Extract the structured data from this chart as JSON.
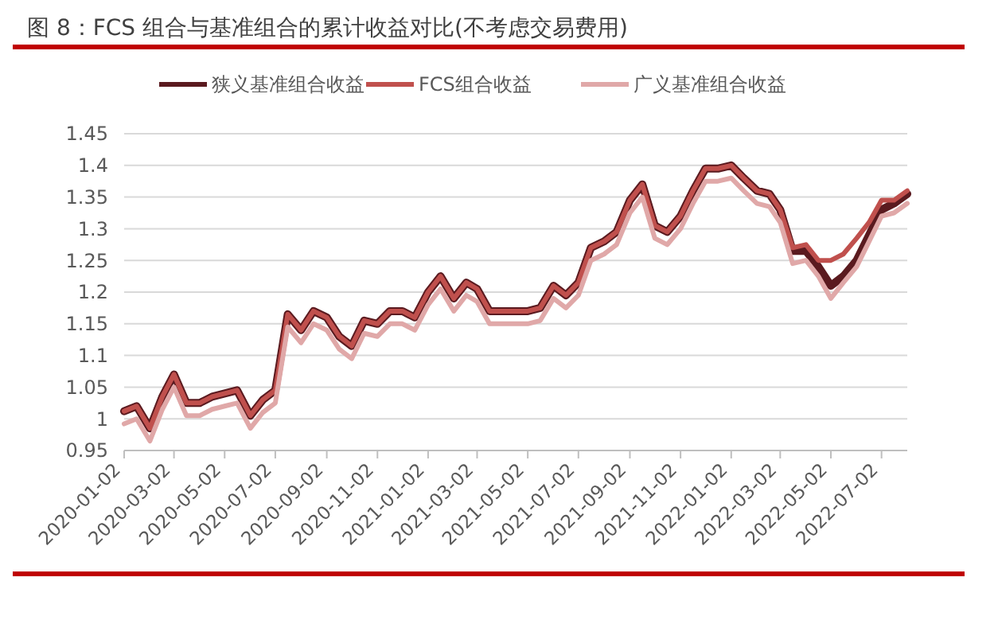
{
  "chart_data": {
    "type": "line",
    "title": "图 8：FCS 组合与基准组合的累计收益对比(不考虑交易费用)",
    "x": [
      "2020-01-02",
      "2020-01-17",
      "2020-02-02",
      "2020-02-17",
      "2020-03-02",
      "2020-03-17",
      "2020-04-02",
      "2020-04-17",
      "2020-05-02",
      "2020-05-17",
      "2020-06-02",
      "2020-06-17",
      "2020-07-02",
      "2020-07-17",
      "2020-08-02",
      "2020-08-17",
      "2020-09-02",
      "2020-09-17",
      "2020-10-02",
      "2020-10-17",
      "2020-11-02",
      "2020-11-17",
      "2020-12-02",
      "2020-12-17",
      "2021-01-02",
      "2021-01-17",
      "2021-02-02",
      "2021-02-17",
      "2021-03-02",
      "2021-03-17",
      "2021-04-02",
      "2021-04-17",
      "2021-05-02",
      "2021-05-17",
      "2021-06-02",
      "2021-06-17",
      "2021-07-02",
      "2021-07-17",
      "2021-08-02",
      "2021-08-17",
      "2021-09-02",
      "2021-09-17",
      "2021-10-02",
      "2021-10-17",
      "2021-11-02",
      "2021-11-17",
      "2021-12-02",
      "2021-12-17",
      "2022-01-02",
      "2022-01-17",
      "2022-02-02",
      "2022-02-17",
      "2022-03-02",
      "2022-03-17",
      "2022-04-02",
      "2022-04-17",
      "2022-05-02",
      "2022-05-17",
      "2022-06-02",
      "2022-06-17",
      "2022-07-02",
      "2022-07-17",
      "2022-08-02"
    ],
    "xlim": [
      "2020-01-02",
      "2022-08-02"
    ],
    "xticks": [
      "2020-01-02",
      "2020-03-02",
      "2020-05-02",
      "2020-07-02",
      "2020-09-02",
      "2020-11-02",
      "2021-01-02",
      "2021-03-02",
      "2021-05-02",
      "2021-07-02",
      "2021-09-02",
      "2021-11-02",
      "2022-01-02",
      "2022-03-02",
      "2022-05-02",
      "2022-07-02"
    ],
    "series": [
      {
        "name": "狭义基准组合收益",
        "color": "#5a1a1f",
        "values": [
          1.012,
          1.02,
          0.985,
          1.035,
          1.07,
          1.025,
          1.025,
          1.035,
          1.04,
          1.045,
          1.005,
          1.03,
          1.045,
          1.165,
          1.14,
          1.17,
          1.16,
          1.13,
          1.115,
          1.155,
          1.15,
          1.17,
          1.17,
          1.16,
          1.2,
          1.225,
          1.19,
          1.215,
          1.205,
          1.17,
          1.17,
          1.17,
          1.17,
          1.175,
          1.21,
          1.195,
          1.215,
          1.27,
          1.28,
          1.295,
          1.345,
          1.37,
          1.305,
          1.295,
          1.32,
          1.36,
          1.395,
          1.395,
          1.4,
          1.38,
          1.36,
          1.355,
          1.33,
          1.265,
          1.265,
          1.24,
          1.21,
          1.225,
          1.25,
          1.29,
          1.33,
          1.34,
          1.355
        ]
      },
      {
        "name": "FCS组合收益",
        "color": "#c0504d",
        "values": [
          1.012,
          1.02,
          0.985,
          1.035,
          1.07,
          1.025,
          1.025,
          1.035,
          1.04,
          1.045,
          1.005,
          1.03,
          1.045,
          1.165,
          1.14,
          1.17,
          1.16,
          1.13,
          1.115,
          1.155,
          1.15,
          1.17,
          1.17,
          1.16,
          1.2,
          1.225,
          1.19,
          1.215,
          1.205,
          1.17,
          1.17,
          1.17,
          1.17,
          1.175,
          1.21,
          1.195,
          1.215,
          1.27,
          1.28,
          1.295,
          1.345,
          1.37,
          1.305,
          1.295,
          1.32,
          1.36,
          1.395,
          1.395,
          1.4,
          1.38,
          1.36,
          1.355,
          1.33,
          1.27,
          1.275,
          1.25,
          1.25,
          1.26,
          1.285,
          1.31,
          1.345,
          1.345,
          1.36
        ]
      },
      {
        "name": "广义基准组合收益",
        "color": "#e0a8a8",
        "values": [
          0.992,
          1.0,
          0.965,
          1.015,
          1.05,
          1.005,
          1.005,
          1.015,
          1.02,
          1.025,
          0.985,
          1.01,
          1.025,
          1.145,
          1.12,
          1.15,
          1.14,
          1.11,
          1.095,
          1.135,
          1.13,
          1.15,
          1.15,
          1.14,
          1.18,
          1.205,
          1.17,
          1.195,
          1.185,
          1.15,
          1.15,
          1.15,
          1.15,
          1.155,
          1.19,
          1.175,
          1.195,
          1.25,
          1.26,
          1.275,
          1.325,
          1.35,
          1.285,
          1.275,
          1.3,
          1.34,
          1.375,
          1.375,
          1.38,
          1.36,
          1.34,
          1.335,
          1.31,
          1.245,
          1.25,
          1.225,
          1.19,
          1.215,
          1.24,
          1.28,
          1.32,
          1.325,
          1.34
        ]
      }
    ],
    "ylim": [
      0.95,
      1.45
    ],
    "yticks": [
      0.95,
      1,
      1.05,
      1.1,
      1.15,
      1.2,
      1.25,
      1.3,
      1.35,
      1.4,
      1.45
    ],
    "grid": "y",
    "legend": "top",
    "marker": "none",
    "line_style": "solid"
  }
}
